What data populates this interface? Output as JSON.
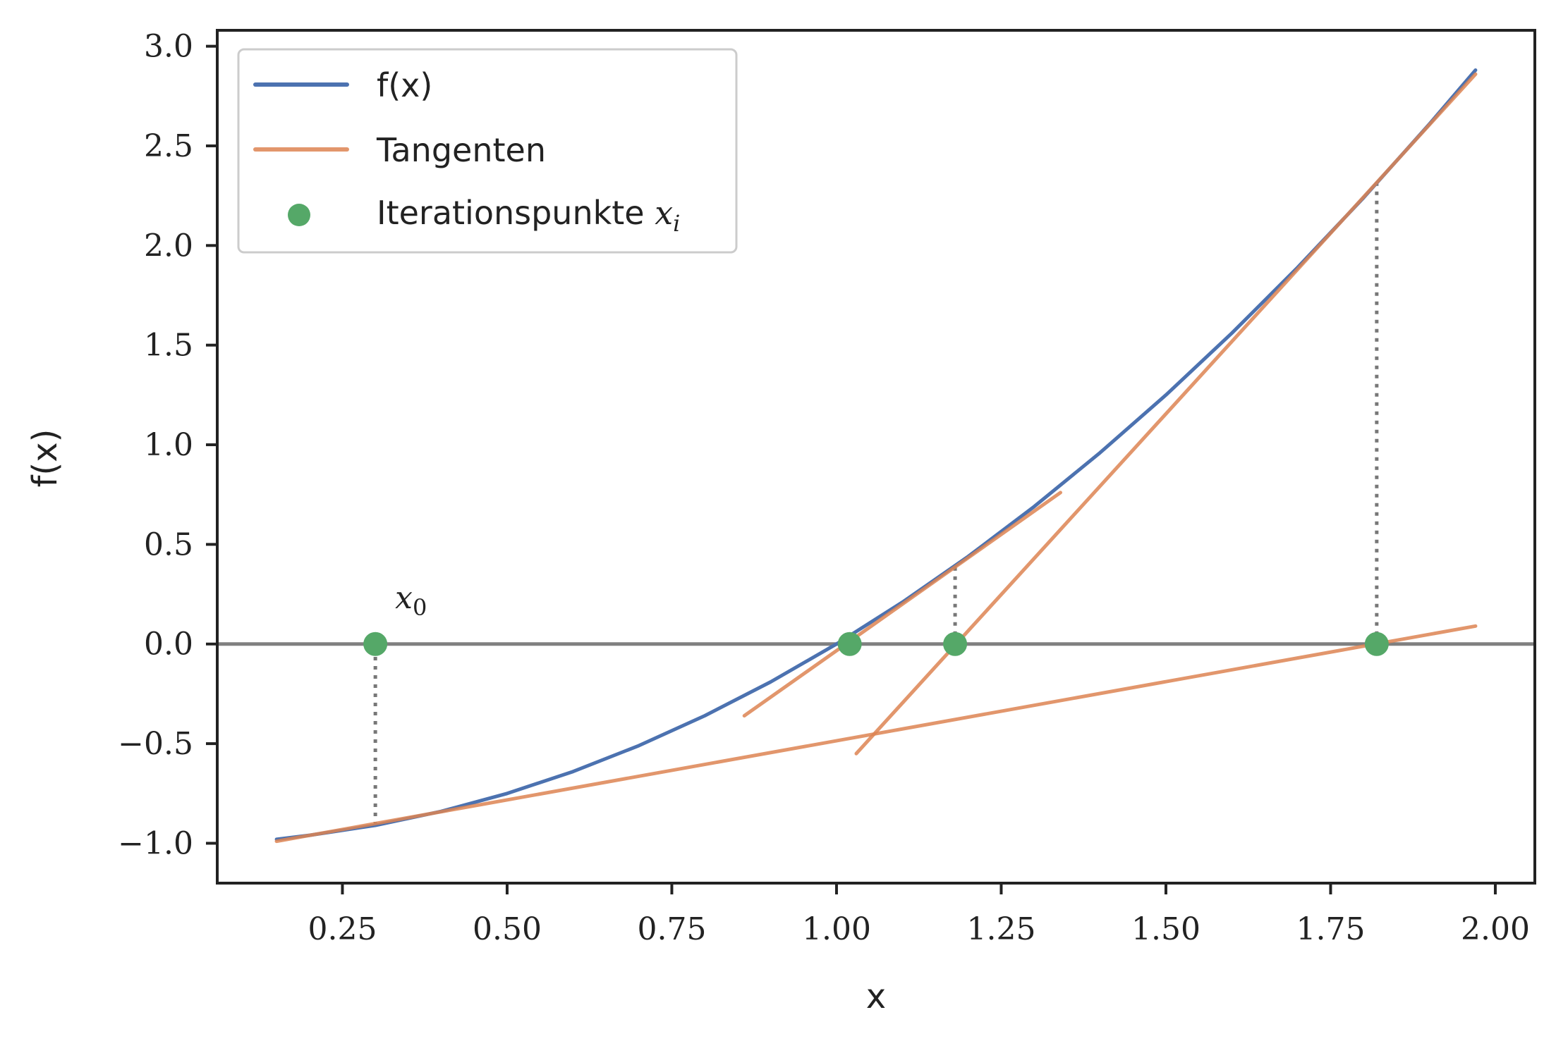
{
  "chart_data": {
    "type": "line",
    "xlabel": "x",
    "ylabel": "f(x)",
    "xlim": [
      0.06,
      2.06
    ],
    "ylim": [
      -1.2,
      3.08
    ],
    "xticks": [
      0.25,
      0.5,
      0.75,
      1.0,
      1.25,
      1.5,
      1.75,
      2.0
    ],
    "xtick_labels": [
      "0.25",
      "0.50",
      "0.75",
      "1.00",
      "1.25",
      "1.50",
      "1.75",
      "2.00"
    ],
    "yticks": [
      -1.0,
      -0.5,
      0.0,
      0.5,
      1.0,
      1.5,
      2.0,
      2.5,
      3.0
    ],
    "ytick_labels": [
      "−1.0",
      "−0.5",
      "0.0",
      "0.5",
      "1.0",
      "1.5",
      "2.0",
      "2.5",
      "3.0"
    ],
    "grid": false,
    "legend_position": "top-left",
    "function": {
      "name": "f(x)",
      "color": "#4C72B0",
      "x": [
        0.15,
        0.2,
        0.3,
        0.4,
        0.5,
        0.6,
        0.7,
        0.8,
        0.9,
        1.0,
        1.1,
        1.2,
        1.3,
        1.4,
        1.5,
        1.6,
        1.7,
        1.8,
        1.9,
        1.97
      ],
      "y": [
        -0.98,
        -0.96,
        -0.91,
        -0.84,
        -0.75,
        -0.64,
        -0.51,
        -0.36,
        -0.19,
        0.0,
        0.21,
        0.44,
        0.69,
        0.96,
        1.25,
        1.56,
        1.89,
        2.24,
        2.61,
        2.88
      ]
    },
    "tangents": {
      "name": "Tangenten",
      "color": "#DD8452",
      "segments": [
        {
          "x": [
            0.15,
            1.97
          ],
          "y": [
            -0.99,
            0.09
          ]
        },
        {
          "x": [
            1.03,
            1.97
          ],
          "y": [
            -0.55,
            2.86
          ]
        },
        {
          "x": [
            0.86,
            1.34
          ],
          "y": [
            -0.36,
            0.76
          ]
        }
      ]
    },
    "iteration_points": {
      "name": "Iterationspunkte",
      "name_math_base": "x",
      "name_math_sub": "i",
      "color": "#55A868",
      "x": [
        0.3,
        1.82,
        1.18,
        1.02
      ],
      "y": [
        0.0,
        0.0,
        0.0,
        0.0
      ]
    },
    "dotted_verticals": {
      "color": "#777777",
      "segments": [
        {
          "x": 0.3,
          "y": [
            -0.91,
            0.0
          ]
        },
        {
          "x": 1.82,
          "y": [
            0.0,
            2.31
          ]
        },
        {
          "x": 1.18,
          "y": [
            0.0,
            0.39
          ]
        }
      ]
    },
    "zero_line": {
      "y": 0.0,
      "color": "#808080"
    },
    "annotation": {
      "base": "x",
      "sub": "0",
      "x": 0.33,
      "y": 0.18
    }
  }
}
